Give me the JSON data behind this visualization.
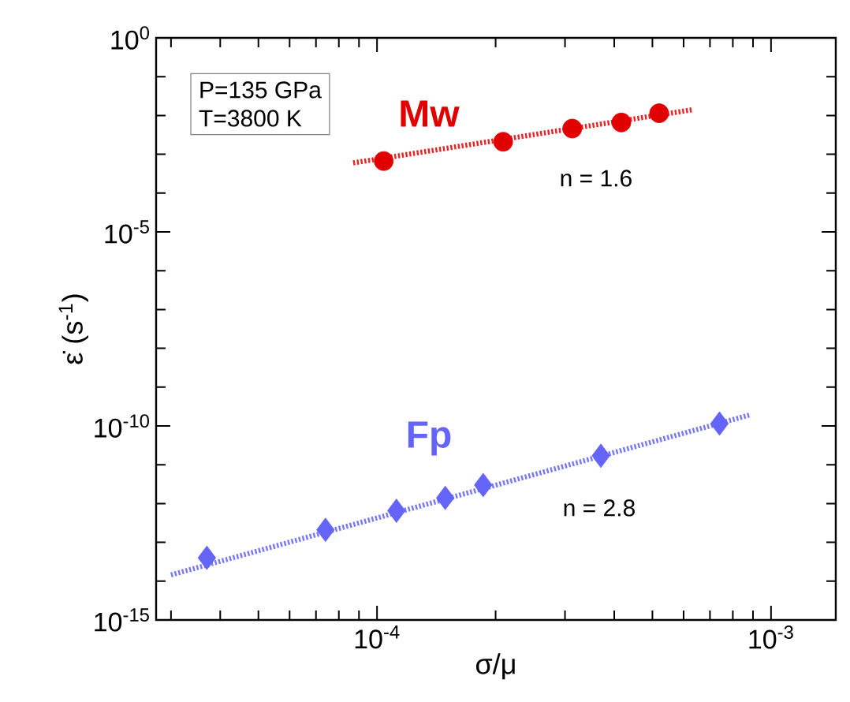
{
  "chart_data": {
    "type": "scatter",
    "xlabel": "σ/μ",
    "ylabel": "ε̇ (s$^{-1}$)",
    "log": "xy",
    "xlim": [
      2.75e-05,
      0.00146
    ],
    "ylim": [
      1e-15,
      1
    ],
    "xticks": [
      {
        "value": 3e-05,
        "label": null
      },
      {
        "value": 4e-05,
        "label": null
      },
      {
        "value": 5e-05,
        "label": null
      },
      {
        "value": 6e-05,
        "label": null
      },
      {
        "value": 7e-05,
        "label": null
      },
      {
        "value": 8e-05,
        "label": null
      },
      {
        "value": 9e-05,
        "label": null
      },
      {
        "value": 0.0001,
        "label": "10$^{-4}$"
      },
      {
        "value": 0.0002,
        "label": null
      },
      {
        "value": 0.0003,
        "label": null
      },
      {
        "value": 0.0004,
        "label": null
      },
      {
        "value": 0.0005,
        "label": null
      },
      {
        "value": 0.0006,
        "label": null
      },
      {
        "value": 0.0007,
        "label": null
      },
      {
        "value": 0.0008,
        "label": null
      },
      {
        "value": 0.0009,
        "label": null
      },
      {
        "value": 0.001,
        "label": "10$^{-3}$"
      }
    ],
    "yticks": [
      {
        "value": 1e-15,
        "label": "10$^{-15}$"
      },
      {
        "value": 1e-14,
        "label": null
      },
      {
        "value": 1e-13,
        "label": null
      },
      {
        "value": 1e-12,
        "label": null
      },
      {
        "value": 1e-11,
        "label": null
      },
      {
        "value": 1e-10,
        "label": "10$^{-10}$"
      },
      {
        "value": 1e-09,
        "label": null
      },
      {
        "value": 1e-08,
        "label": null
      },
      {
        "value": 1e-07,
        "label": null
      },
      {
        "value": 1e-06,
        "label": null
      },
      {
        "value": 1e-05,
        "label": "10$^{-5}$"
      },
      {
        "value": 0.0001,
        "label": null
      },
      {
        "value": 0.001,
        "label": null
      },
      {
        "value": 0.01,
        "label": null
      },
      {
        "value": 0.1,
        "label": null
      },
      {
        "value": 1,
        "label": "10$^{0}$"
      }
    ],
    "series": [
      {
        "type": "line",
        "color": "#ee2222",
        "line_style": "dotted",
        "marker": "none",
        "x": [
          8.7e-05,
          0.00063
        ],
        "values": [
          0.0006,
          0.014
        ]
      },
      {
        "type": "line",
        "color": "#7777ff",
        "line_style": "dotted",
        "marker": "none",
        "x": [
          3e-05,
          0.00088
        ],
        "values": [
          1.45e-14,
          1.9e-10
        ]
      },
      {
        "name": "Mw",
        "color": "#e00000",
        "marker": "circle",
        "x": [
          0.000104,
          0.000209,
          0.000313,
          0.000417,
          0.00052
        ],
        "values": [
          0.00067,
          0.0021,
          0.0046,
          0.0066,
          0.0114
        ]
      },
      {
        "name": "Fp",
        "color": "#6464f8",
        "marker": "diamond",
        "x": [
          3.7e-05,
          7.4e-05,
          0.000112,
          0.000149,
          0.000186,
          0.00037,
          0.00074
        ],
        "values": [
          4e-14,
          2.1e-13,
          6.5e-13,
          1.4e-12,
          3e-12,
          1.7e-11,
          1.15e-10
        ]
      }
    ],
    "annotations": [
      "P=135 GPa",
      "T=3800 K",
      "n = 1.6",
      "n = 2.8"
    ]
  }
}
